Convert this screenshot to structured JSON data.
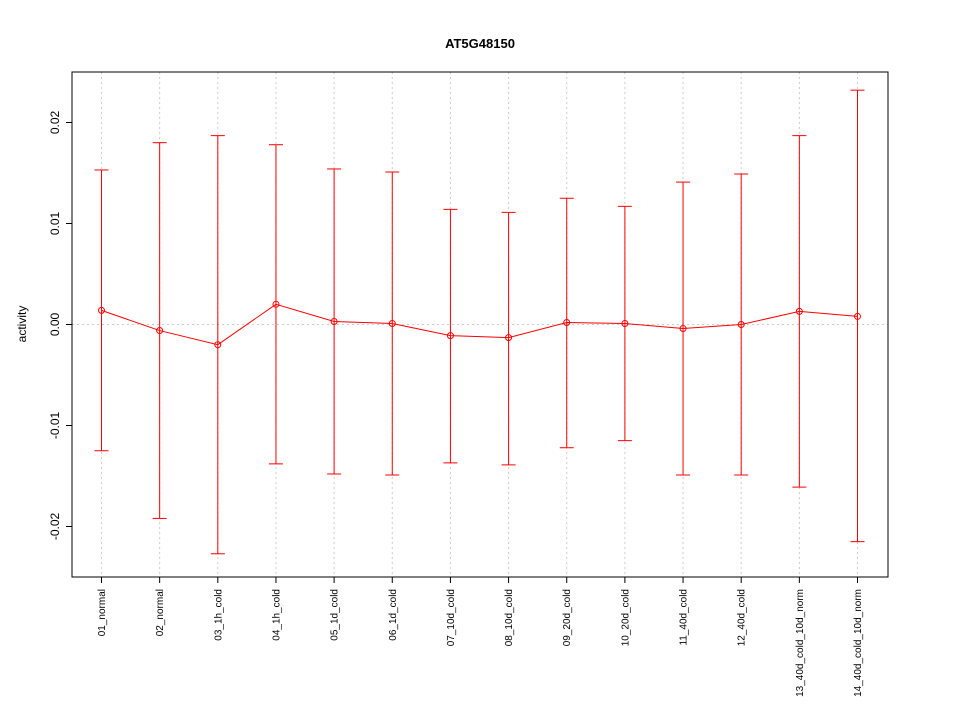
{
  "chart_data": {
    "type": "line",
    "title": "AT5G48150",
    "xlabel": "",
    "ylabel": "activity",
    "ylim": [
      -0.025,
      0.025
    ],
    "yticks": [
      -0.02,
      -0.01,
      0.0,
      0.01,
      0.02
    ],
    "ytick_labels": [
      "-0.02",
      "-0.01",
      "0.00",
      "0.01",
      "0.02"
    ],
    "grid": true,
    "color": "#ff0000",
    "categories": [
      "01_normal",
      "02_normal",
      "03_1h_cold",
      "04_1h_cold",
      "05_1d_cold",
      "06_1d_cold",
      "07_10d_cold",
      "08_10d_cold",
      "09_20d_cold",
      "10_20d_cold",
      "11_40d_cold",
      "12_40d_cold",
      "13_40d_cold_10d_norm",
      "14_40d_cold_10d_norm"
    ],
    "series": [
      {
        "values": [
          0.0014,
          -0.0006,
          -0.002,
          0.002,
          0.0003,
          0.0001,
          -0.0011,
          -0.0013,
          0.0002,
          0.0001,
          -0.0004,
          0.0,
          0.0013,
          0.0008
        ],
        "upper": [
          0.0153,
          0.018,
          0.0187,
          0.0178,
          0.0154,
          0.0151,
          0.0114,
          0.0111,
          0.0125,
          0.0117,
          0.0141,
          0.0149,
          0.0187,
          0.0232
        ],
        "lower": [
          -0.0125,
          -0.0192,
          -0.0227,
          -0.0138,
          -0.0148,
          -0.0149,
          -0.0137,
          -0.0139,
          -0.0122,
          -0.0115,
          -0.0149,
          -0.0149,
          -0.0161,
          -0.0215
        ]
      }
    ]
  }
}
